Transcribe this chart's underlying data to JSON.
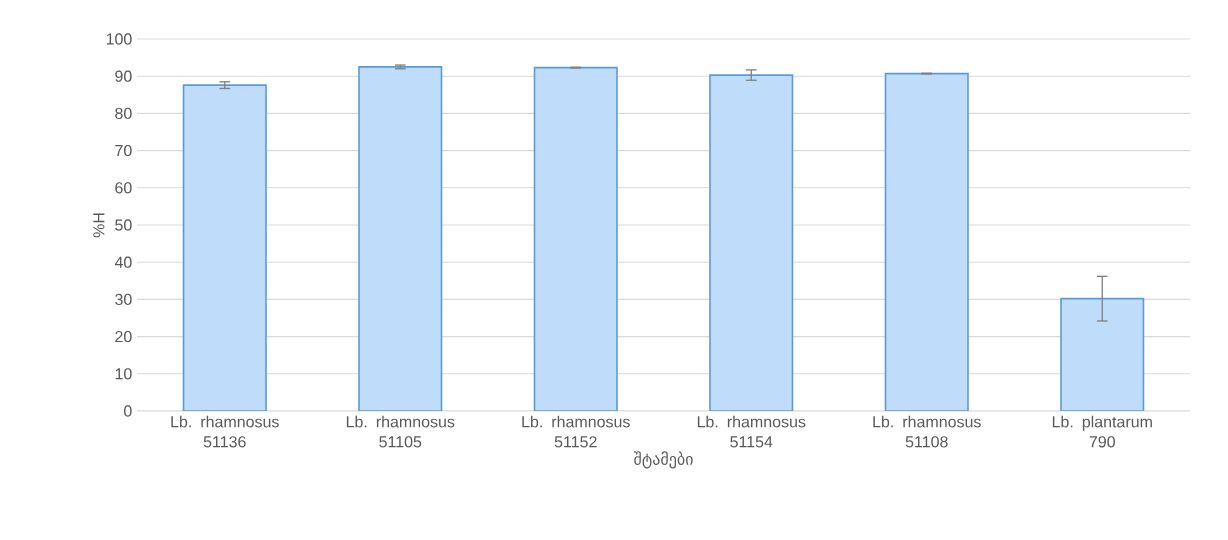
{
  "chart_data": {
    "type": "bar",
    "xlabel": "შტამები",
    "ylabel": "%H",
    "categories": [
      "Lb. rhamnosus 51136",
      "Lb. rhamnosus 51105",
      "Lb. rhamnosus 51152",
      "Lb. rhamnosus 51154",
      "Lb. rhamnosus 51108",
      "Lb. plantarum 790"
    ],
    "values": [
      87.6,
      92.5,
      92.3,
      90.3,
      90.7,
      30.2
    ],
    "errors": [
      0.9,
      0.5,
      0.1,
      1.4,
      0.1,
      6.0
    ],
    "color": "#bfdcfb",
    "ylim": [
      0,
      100
    ],
    "yticks": [
      0,
      10,
      20,
      30,
      40,
      50,
      60,
      70,
      80,
      90,
      100
    ],
    "grid": "y"
  }
}
